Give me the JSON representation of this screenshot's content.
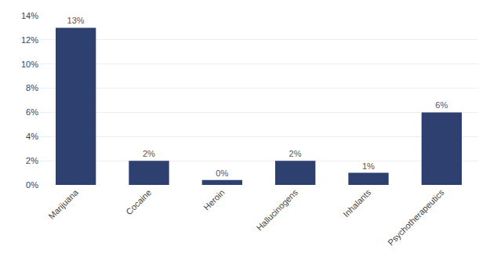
{
  "chart_data": {
    "type": "bar",
    "categories": [
      "Marijuana",
      "Cocaine",
      "Heroin",
      "Hallucinogens",
      "Inhalants",
      "Psychotherapeutics"
    ],
    "values": [
      13,
      2,
      0.4,
      2,
      1,
      6
    ],
    "value_labels": [
      "13%",
      "2%",
      "0%",
      "2%",
      "1%",
      "6%"
    ],
    "data_labels": true,
    "color": "#2E4070",
    "ylim": [
      0,
      14
    ],
    "yticks": [
      {
        "value": 0,
        "label": "0%"
      },
      {
        "value": 2,
        "label": "2%"
      },
      {
        "value": 4,
        "label": "4%"
      },
      {
        "value": 6,
        "label": "6%"
      },
      {
        "value": 8,
        "label": "8%"
      },
      {
        "value": 10,
        "label": "10%"
      },
      {
        "value": 12,
        "label": "12%"
      },
      {
        "value": 14,
        "label": "14%"
      }
    ],
    "grid": true
  }
}
